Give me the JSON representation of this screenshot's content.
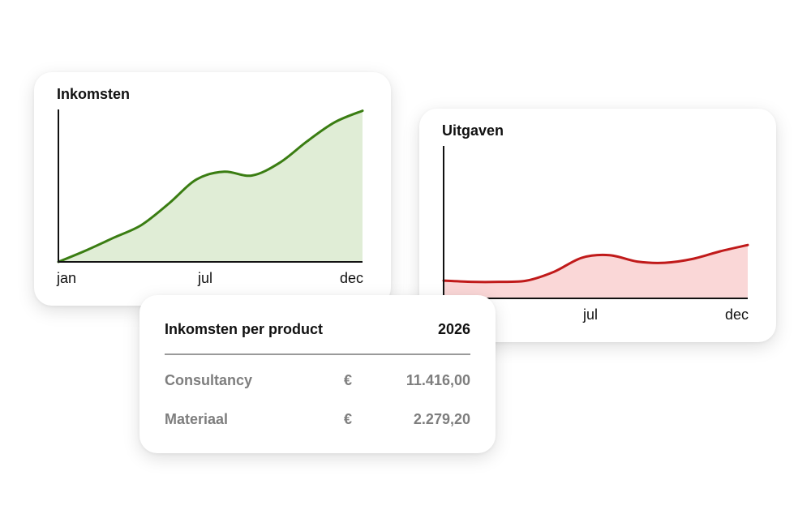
{
  "colors": {
    "income_line": "#3a7d12",
    "income_fill": "#e0edd6",
    "expense_line": "#c01a1a",
    "expense_fill": "#fad7d7",
    "table_text": "#7e7e7e"
  },
  "chart_data": [
    {
      "type": "area",
      "title": "Inkomsten",
      "x_tick_labels": [
        "jan",
        "jul",
        "dec"
      ],
      "x": [
        1,
        2,
        3,
        4,
        5,
        6,
        7,
        8,
        9,
        10,
        11,
        12
      ],
      "series": [
        {
          "values": [
            0,
            0.09,
            0.19,
            0.29,
            0.46,
            0.65,
            0.71,
            0.68,
            0.78,
            0.95,
            1.1,
            1.19
          ]
        }
      ],
      "ylim": [
        0,
        1.2
      ],
      "grid": false
    },
    {
      "type": "area",
      "title": "Uitgaven",
      "x_tick_labels": [
        "jul",
        "dec"
      ],
      "x": [
        1,
        2,
        3,
        4,
        5,
        6,
        7,
        8,
        9,
        10,
        11,
        12
      ],
      "series": [
        {
          "values": [
            0.14,
            0.13,
            0.13,
            0.14,
            0.21,
            0.32,
            0.34,
            0.29,
            0.28,
            0.31,
            0.37,
            0.42
          ]
        }
      ],
      "ylim": [
        0,
        1.2
      ],
      "grid": false
    }
  ],
  "table": {
    "title": "Inkomsten per product",
    "year": "2026",
    "rows": [
      {
        "name": "Consultancy",
        "currency": "€",
        "amount": "11.416,00"
      },
      {
        "name": "Materiaal",
        "currency": "€",
        "amount": "2.279,20"
      }
    ]
  }
}
